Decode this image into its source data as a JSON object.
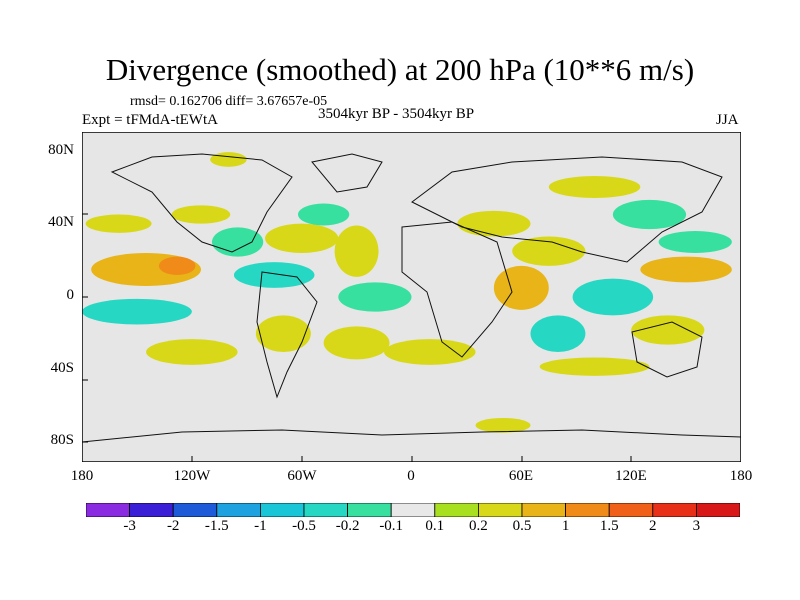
{
  "header": {
    "title": "Divergence (smoothed) at 200 hPa (10**6 m/s)",
    "stats": "rmsd= 0.162706  diff= 3.67657e-05",
    "experiment": "Expt = tFMdA-tEWtA",
    "period": "3504kyr BP - 3504kyr BP",
    "season": "JJA"
  },
  "chart_data": {
    "type": "heatmap",
    "title": "Divergence (smoothed) at 200 hPa (10**6 m/s)",
    "xlabel": "",
    "ylabel": "",
    "xlim": [
      -180,
      180
    ],
    "ylim": [
      -90,
      90
    ],
    "x_ticks": [
      "180",
      "120W",
      "60W",
      "0",
      "60E",
      "120E",
      "180"
    ],
    "y_ticks": [
      "80N",
      "40N",
      "0",
      "40S",
      "80S"
    ],
    "colorbar": {
      "levels": [
        "-3",
        "-2",
        "-1.5",
        "-1",
        "-0.5",
        "-0.2",
        "-0.1",
        "0.1",
        "0.2",
        "0.5",
        "1",
        "1.5",
        "2",
        "3"
      ],
      "colors": [
        "#8a2be2",
        "#3b1fd6",
        "#1e5bd8",
        "#1ea3e0",
        "#18c6d8",
        "#26d8c4",
        "#38e0a0",
        "#e8e8e8",
        "#a8e020",
        "#d8d818",
        "#e8b418",
        "#f08a18",
        "#f06018",
        "#e83018",
        "#d81818"
      ]
    },
    "regions": [
      {
        "lon": -145,
        "lat": 15,
        "rx": 30,
        "ry": 9,
        "value": 0.5
      },
      {
        "lon": -128,
        "lat": 17,
        "rx": 10,
        "ry": 5,
        "value": 1
      },
      {
        "lon": -150,
        "lat": -8,
        "rx": 30,
        "ry": 7,
        "value": -0.5
      },
      {
        "lon": -160,
        "lat": 40,
        "rx": 18,
        "ry": 5,
        "value": 0.2
      },
      {
        "lon": -115,
        "lat": 45,
        "rx": 16,
        "ry": 5,
        "value": 0.2
      },
      {
        "lon": -95,
        "lat": 30,
        "rx": 14,
        "ry": 8,
        "value": -0.2
      },
      {
        "lon": -60,
        "lat": 32,
        "rx": 20,
        "ry": 8,
        "value": 0.2
      },
      {
        "lon": -75,
        "lat": 12,
        "rx": 22,
        "ry": 7,
        "value": -0.5
      },
      {
        "lon": -48,
        "lat": 45,
        "rx": 14,
        "ry": 6,
        "value": -0.2
      },
      {
        "lon": -30,
        "lat": 25,
        "rx": 12,
        "ry": 14,
        "value": 0.2
      },
      {
        "lon": -20,
        "lat": 0,
        "rx": 20,
        "ry": 8,
        "value": -0.2
      },
      {
        "lon": -70,
        "lat": -20,
        "rx": 15,
        "ry": 10,
        "value": 0.2
      },
      {
        "lon": -120,
        "lat": -30,
        "rx": 25,
        "ry": 7,
        "value": 0.2
      },
      {
        "lon": -30,
        "lat": -25,
        "rx": 18,
        "ry": 9,
        "value": 0.2
      },
      {
        "lon": 10,
        "lat": -30,
        "rx": 25,
        "ry": 7,
        "value": 0.2
      },
      {
        "lon": 60,
        "lat": 5,
        "rx": 15,
        "ry": 12,
        "value": 0.5
      },
      {
        "lon": 45,
        "lat": 40,
        "rx": 20,
        "ry": 7,
        "value": 0.2
      },
      {
        "lon": 80,
        "lat": -20,
        "rx": 15,
        "ry": 10,
        "value": -0.5
      },
      {
        "lon": 75,
        "lat": 25,
        "rx": 20,
        "ry": 8,
        "value": 0.2
      },
      {
        "lon": 110,
        "lat": 0,
        "rx": 22,
        "ry": 10,
        "value": -0.5
      },
      {
        "lon": 130,
        "lat": 45,
        "rx": 20,
        "ry": 8,
        "value": -0.2
      },
      {
        "lon": 150,
        "lat": 15,
        "rx": 25,
        "ry": 7,
        "value": 0.5
      },
      {
        "lon": 155,
        "lat": 30,
        "rx": 20,
        "ry": 6,
        "value": -0.2
      },
      {
        "lon": 140,
        "lat": -18,
        "rx": 20,
        "ry": 8,
        "value": 0.2
      },
      {
        "lon": 100,
        "lat": -38,
        "rx": 30,
        "ry": 5,
        "value": 0.2
      },
      {
        "lon": 50,
        "lat": -70,
        "rx": 15,
        "ry": 4,
        "value": 0.2
      },
      {
        "lon": -100,
        "lat": 75,
        "rx": 10,
        "ry": 4,
        "value": 0.2
      },
      {
        "lon": 100,
        "lat": 60,
        "rx": 25,
        "ry": 6,
        "value": 0.2
      }
    ]
  }
}
